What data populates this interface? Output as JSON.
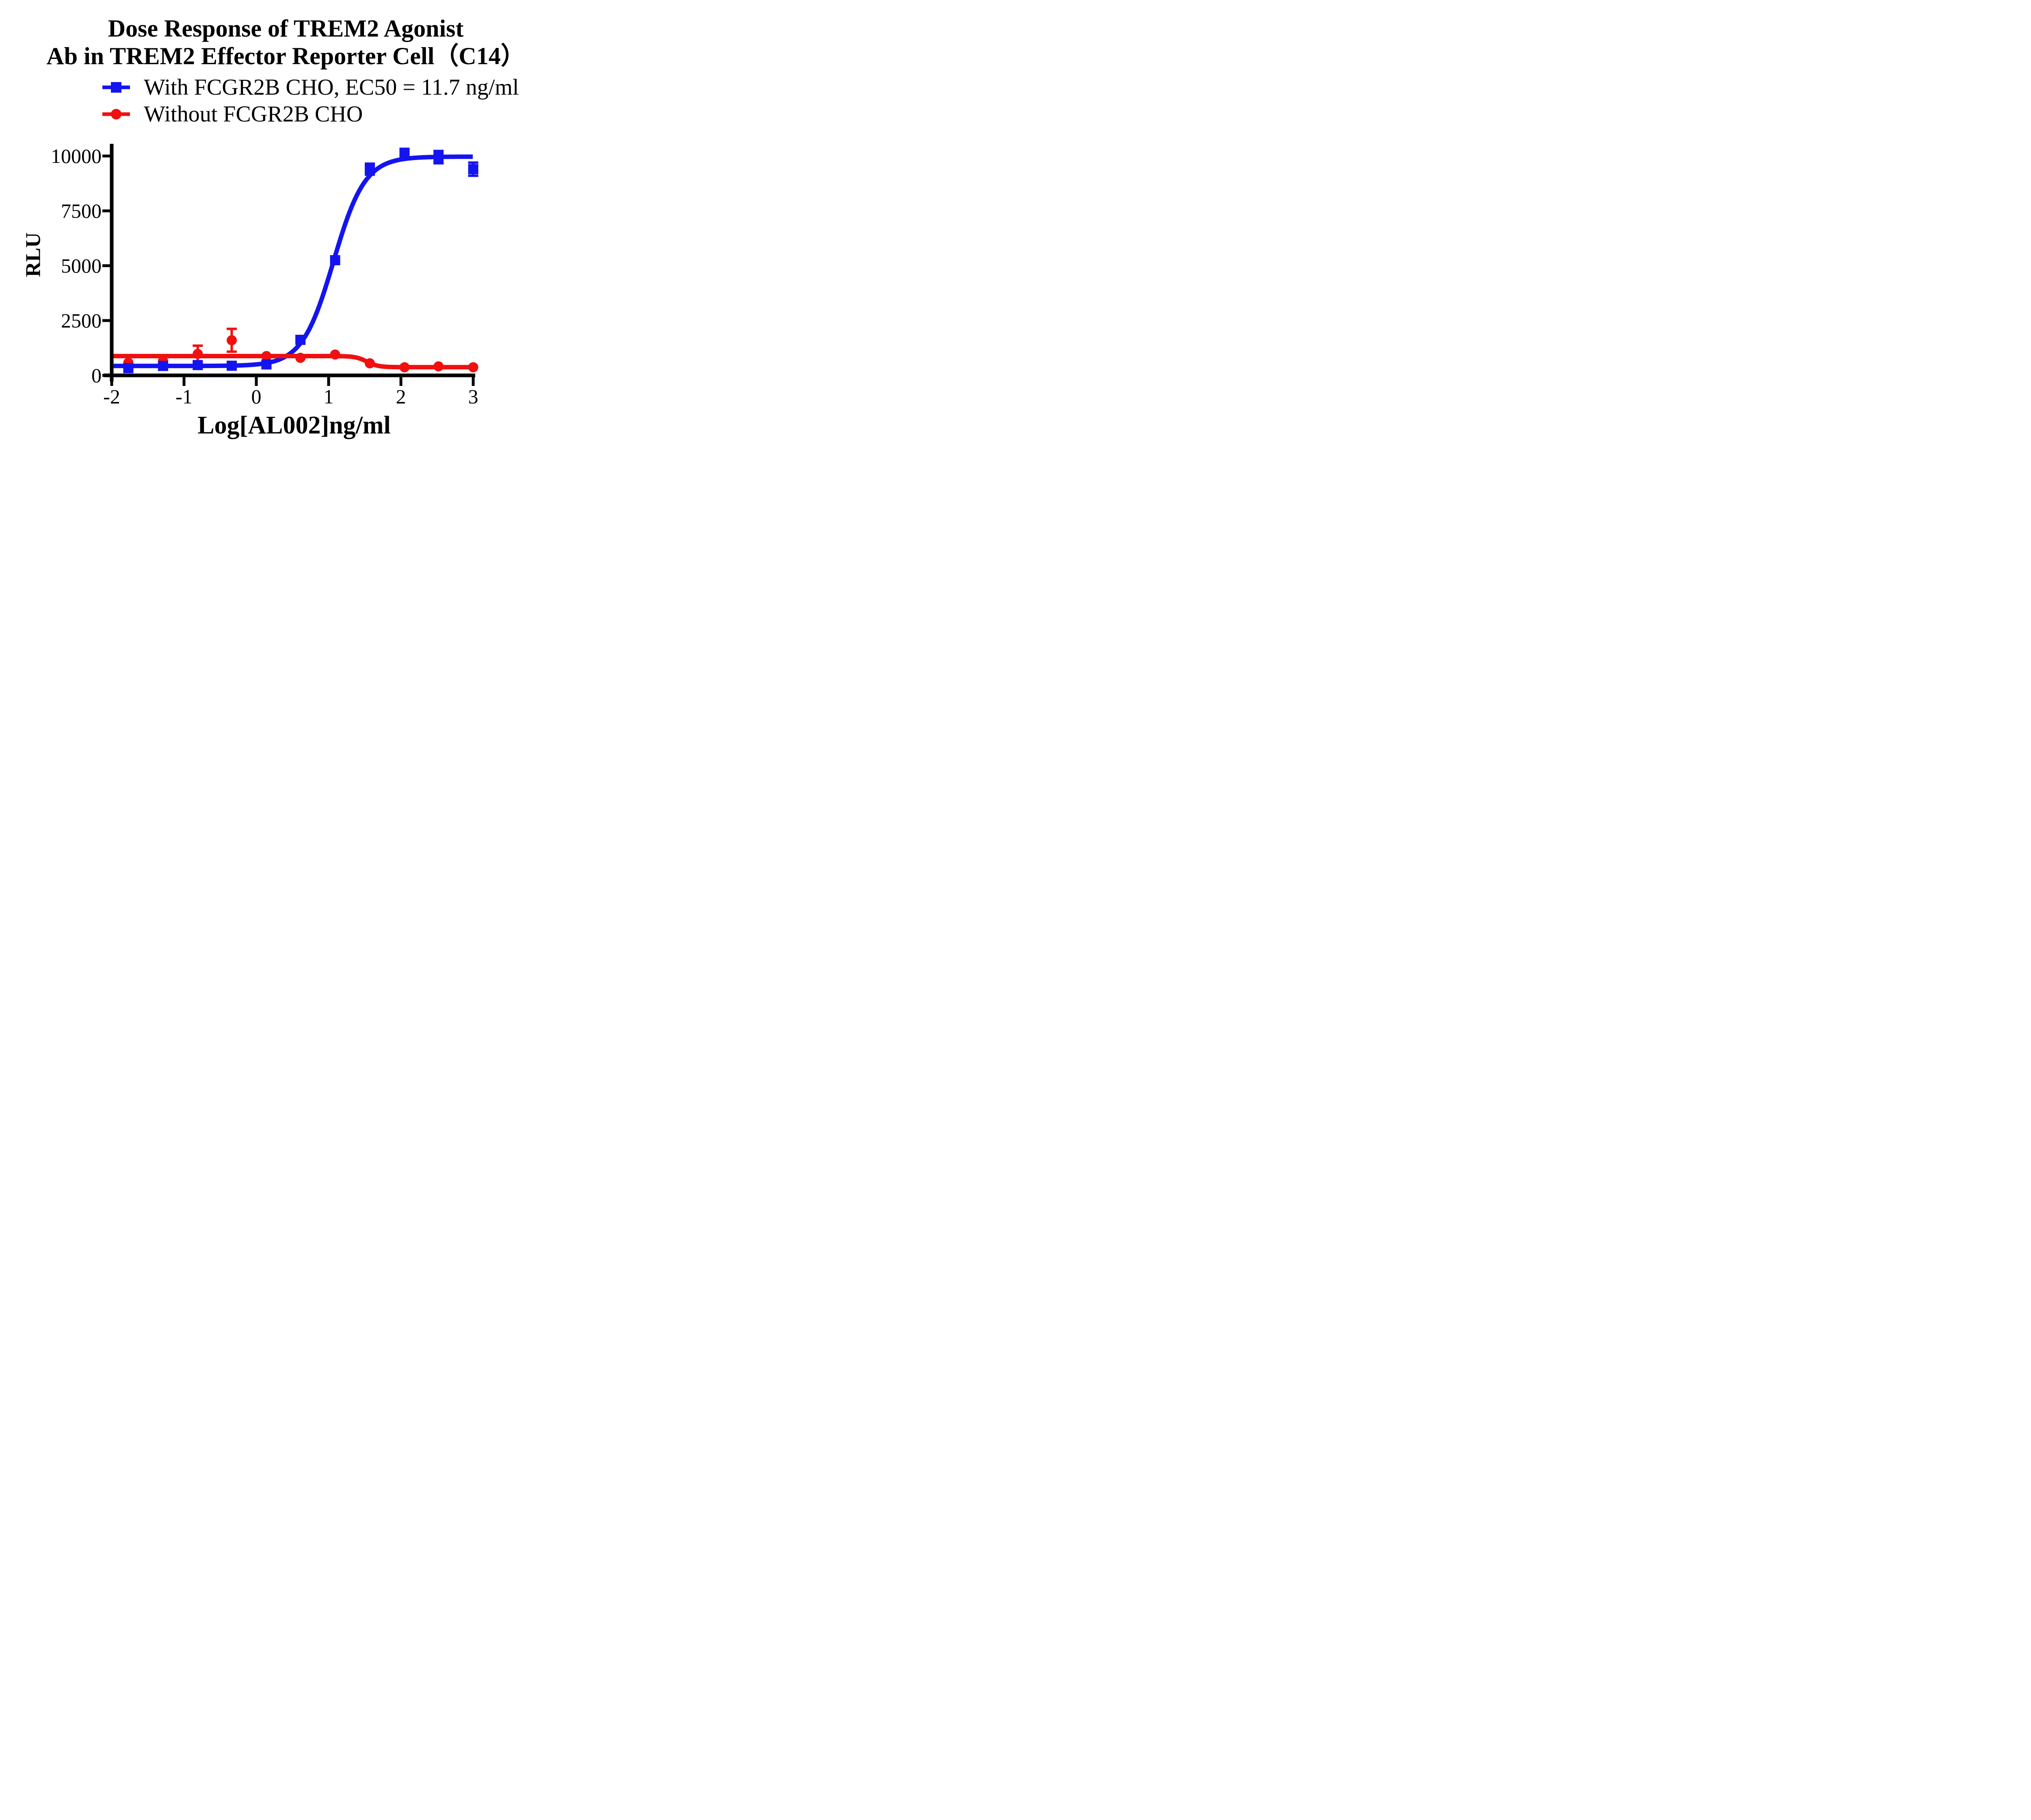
{
  "title": {
    "line1": "Dose Response of TREM2 Agonist",
    "line2": "Ab in TREM2 Effector Reporter Cell（C14）"
  },
  "legend": [
    {
      "label": "With FCGR2B CHO, EC50 = 11.7 ng/ml",
      "color": "#1414f0",
      "marker": "square"
    },
    {
      "label": "Without FCGR2B CHO",
      "color": "#f01010",
      "marker": "circle"
    }
  ],
  "chart_data": {
    "type": "line",
    "title": "Dose Response of TREM2 Agonist Ab in TREM2 Effector Reporter Cell（C14）",
    "xlabel": "Log[AL002]ng/ml",
    "ylabel": "RLU",
    "xlim": [
      -2,
      3
    ],
    "ylim": [
      0,
      10800
    ],
    "xticks": [
      -2,
      -1,
      0,
      1,
      2,
      3
    ],
    "yticks": [
      0,
      2500,
      5000,
      7500,
      10000
    ],
    "grid": false,
    "legend_position": "top-left",
    "x": [
      -1.77,
      -1.29,
      -0.81,
      -0.34,
      0.14,
      0.61,
      1.09,
      1.57,
      2.05,
      2.52,
      3.0
    ],
    "series": [
      {
        "name": "With FCGR2B CHO, EC50 = 11.7 ng/ml",
        "color": "#1414f0",
        "marker": "square",
        "values": [
          330,
          430,
          470,
          440,
          500,
          1620,
          5250,
          9400,
          10150,
          9950,
          9400
        ],
        "errors": [
          0,
          0,
          0,
          0,
          0,
          0,
          0,
          250,
          0,
          280,
          300
        ],
        "fit": {
          "model": "4PL",
          "bottom": 430,
          "top": 9970,
          "logEC50": 1.068,
          "hill": 2.0
        },
        "ec50": "11.7 ng/ml"
      },
      {
        "name": "Without FCGR2B CHO",
        "color": "#f01010",
        "marker": "circle",
        "values": [
          580,
          660,
          980,
          1600,
          880,
          800,
          950,
          550,
          370,
          410,
          370
        ],
        "errors": [
          0,
          0,
          375,
          520,
          0,
          0,
          0,
          0,
          0,
          0,
          0
        ],
        "fit": {
          "model": "4PL",
          "bottom": 375,
          "top": 880,
          "logEC50": 1.53,
          "hill": -5.5
        }
      }
    ]
  }
}
